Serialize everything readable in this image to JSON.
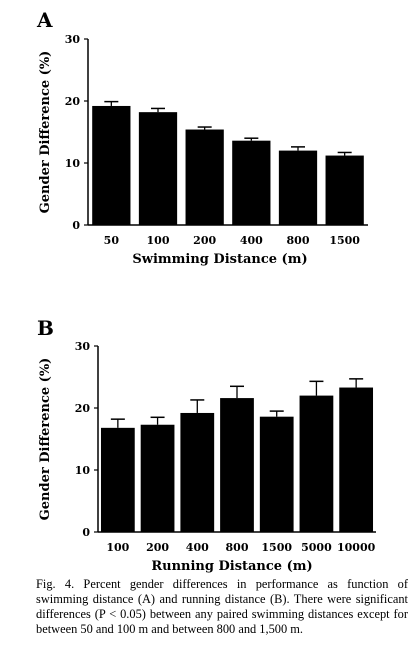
{
  "chart_data": [
    {
      "panel": "A",
      "type": "bar",
      "categories": [
        "50",
        "100",
        "200",
        "400",
        "800",
        "1500"
      ],
      "values": [
        19.2,
        18.2,
        15.4,
        13.6,
        12.0,
        11.2
      ],
      "errors": [
        0.7,
        0.6,
        0.4,
        0.4,
        0.6,
        0.5
      ],
      "xlabel": "Swimming Distance  (m)",
      "ylabel": "Gender Difference (%)",
      "ylim": [
        0,
        30
      ],
      "yticks": [
        "0",
        "10",
        "20",
        "30"
      ],
      "grid": false,
      "bar_color": "#000000"
    },
    {
      "panel": "B",
      "type": "bar",
      "categories": [
        "100",
        "200",
        "400",
        "800",
        "1500",
        "5000",
        "10000"
      ],
      "values": [
        16.8,
        17.3,
        19.2,
        21.6,
        18.6,
        22.0,
        23.3
      ],
      "errors": [
        1.4,
        1.2,
        2.1,
        1.9,
        0.9,
        2.3,
        1.4
      ],
      "xlabel": "Running Distance (m)",
      "ylabel": "Gender Difference (%)",
      "ylim": [
        0,
        30
      ],
      "yticks": [
        "0",
        "10",
        "20",
        "30"
      ],
      "grid": false,
      "bar_color": "#000000"
    }
  ],
  "caption": {
    "prefix": "Fig. 4.",
    "text": "Percent gender differences in performance as function of swimming distance (A) and running distance (B). There were significant differences (P < 0.05) between any paired swimming distances except for between 50 and 100 m and between 800 and 1,500 m."
  }
}
